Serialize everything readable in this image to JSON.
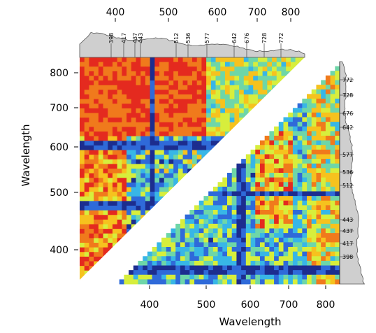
{
  "chart_data": {
    "type": "heatmap",
    "title": "",
    "xlabel": "Wavelength",
    "ylabel": "Wavelength",
    "grid": false,
    "legend": "none",
    "layout": "split-diagonal: upper-left triangle and lower-right triangle separated by a white diagonal band",
    "colormap": [
      "#1c2d8f",
      "#2f6ad9",
      "#38b6e6",
      "#6ed6a8",
      "#d7ee3c",
      "#f6c21e",
      "#f07a1c",
      "#e42a1f"
    ],
    "upper_triangle": {
      "axis_ticks_top": [
        400,
        500,
        600,
        700,
        800
      ],
      "axis_ticks_left": [
        400,
        500,
        600,
        700,
        800
      ],
      "range": [
        340,
        850
      ]
    },
    "lower_triangle": {
      "axis_ticks_bottom": [
        400,
        500,
        600,
        700,
        800
      ],
      "axis_ticks_right": [],
      "range": [
        340,
        850
      ]
    },
    "peak_labels": [
      "398",
      "417",
      "437",
      "443",
      "512",
      "536",
      "577",
      "642",
      "676",
      "728",
      "772"
    ],
    "peak_positions_nm": [
      398,
      417,
      437,
      443,
      512,
      536,
      577,
      642,
      676,
      728,
      772
    ],
    "top_spectrum_shape": "high on left, declining toward right",
    "right_spectrum_shape": "low at top, rising toward bottom"
  }
}
